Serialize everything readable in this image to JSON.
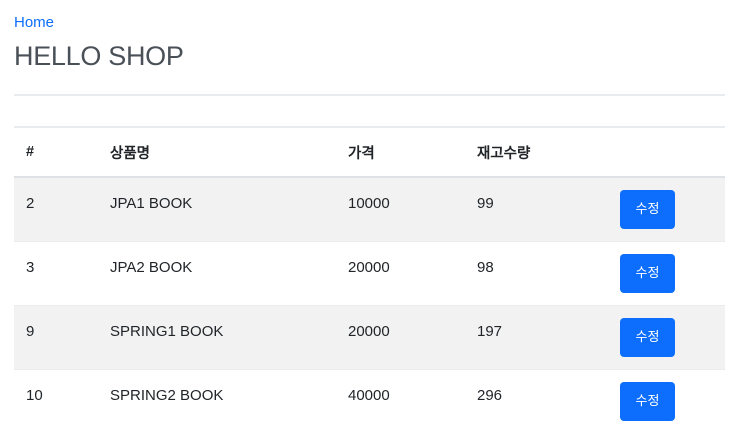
{
  "header": {
    "home_link": "Home",
    "title": "HELLO SHOP"
  },
  "table": {
    "columns": [
      "#",
      "상품명",
      "가격",
      "재고수량",
      ""
    ],
    "rows": [
      {
        "id": "2",
        "name": "JPA1 BOOK",
        "price": "10000",
        "stock": "99",
        "action_label": "수정"
      },
      {
        "id": "3",
        "name": "JPA2 BOOK",
        "price": "20000",
        "stock": "98",
        "action_label": "수정"
      },
      {
        "id": "9",
        "name": "SPRING1 BOOK",
        "price": "20000",
        "stock": "197",
        "action_label": "수정"
      },
      {
        "id": "10",
        "name": "SPRING2 BOOK",
        "price": "40000",
        "stock": "296",
        "action_label": "수정"
      }
    ]
  },
  "colors": {
    "link": "#0d6efd",
    "button": "#0d6efd",
    "stripe": "#f2f2f2",
    "title": "#495057"
  }
}
